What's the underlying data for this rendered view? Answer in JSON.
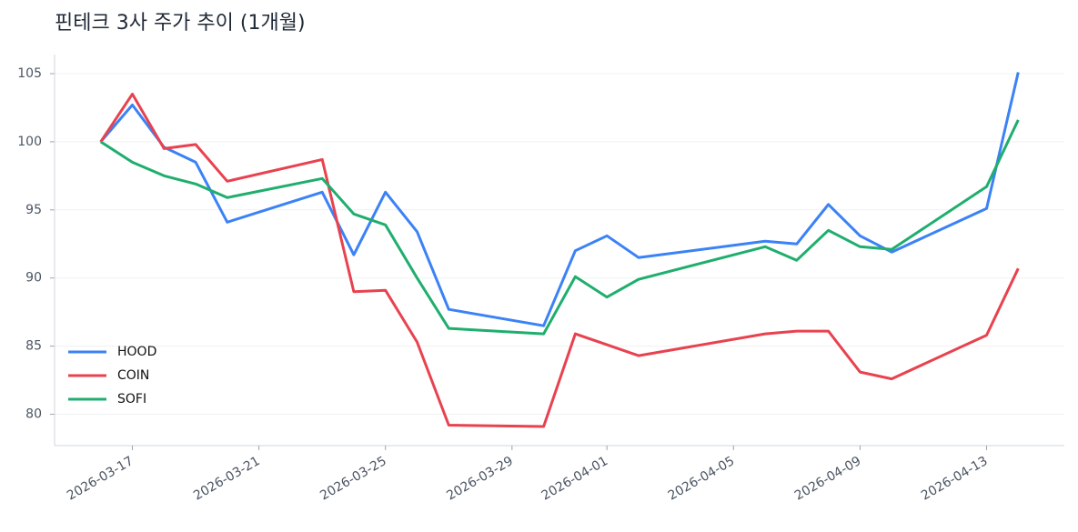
{
  "chart_data": {
    "type": "line",
    "title": "핀테크 3사 주가 추이 (1개월)",
    "x": [
      "2026-03-16",
      "2026-03-17",
      "2026-03-18",
      "2026-03-19",
      "2026-03-20",
      "2026-03-23",
      "2026-03-24",
      "2026-03-25",
      "2026-03-26",
      "2026-03-27",
      "2026-03-30",
      "2026-03-31",
      "2026-04-01",
      "2026-04-02",
      "2026-04-06",
      "2026-04-07",
      "2026-04-08",
      "2026-04-09",
      "2026-04-10",
      "2026-04-13",
      "2026-04-14"
    ],
    "series": [
      {
        "name": "HOOD",
        "color": "#3b82f6",
        "values": [
          100,
          102.7,
          99.6,
          98.5,
          94.1,
          96.3,
          91.7,
          96.3,
          93.4,
          87.7,
          86.5,
          92.0,
          93.1,
          91.5,
          92.7,
          92.5,
          95.4,
          93.1,
          91.9,
          95.1,
          105.1
        ]
      },
      {
        "name": "COIN",
        "color": "#e8424f",
        "values": [
          100,
          103.5,
          99.5,
          99.8,
          97.1,
          98.7,
          89.0,
          89.1,
          85.3,
          79.2,
          79.1,
          85.9,
          85.1,
          84.3,
          85.9,
          86.1,
          86.1,
          83.1,
          82.6,
          85.8,
          90.7
        ]
      },
      {
        "name": "SOFI",
        "color": "#1fae6e",
        "values": [
          100,
          98.5,
          97.5,
          96.9,
          95.9,
          97.3,
          94.7,
          93.9,
          90.0,
          86.3,
          85.9,
          90.1,
          88.6,
          89.9,
          92.3,
          91.3,
          93.5,
          92.3,
          92.1,
          96.7,
          101.6
        ]
      }
    ],
    "xlim": [
      "2026-03-14T13:00",
      "2026-04-15T11:00"
    ],
    "xticks": [
      "2026-03-17",
      "2026-03-21",
      "2026-03-25",
      "2026-03-29",
      "2026-04-01",
      "2026-04-05",
      "2026-04-09",
      "2026-04-13"
    ],
    "ylim": [
      77.7,
      106.4
    ],
    "yticks": [
      80,
      85,
      90,
      95,
      100,
      105
    ],
    "grid": true,
    "legend": "lower left"
  }
}
